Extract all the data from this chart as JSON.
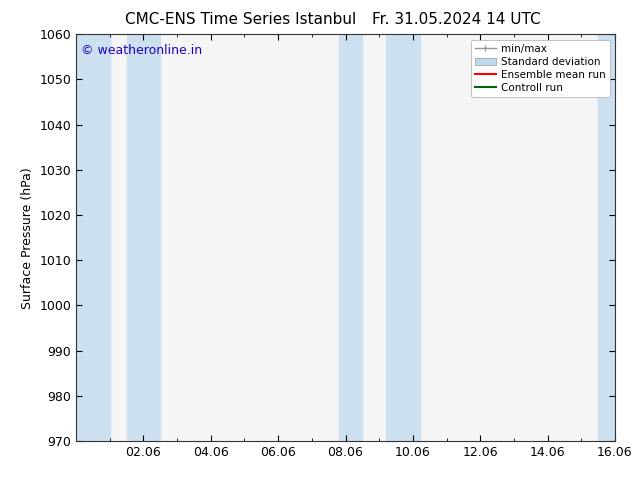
{
  "title_left": "CMC-ENS Time Series Istanbul",
  "title_right": "Fr. 31.05.2024 14 UTC",
  "ylabel": "Surface Pressure (hPa)",
  "ylim": [
    970,
    1060
  ],
  "yticks": [
    970,
    980,
    990,
    1000,
    1010,
    1020,
    1030,
    1040,
    1050,
    1060
  ],
  "xlim": [
    0,
    16
  ],
  "xticks": [
    2,
    4,
    6,
    8,
    10,
    12,
    14,
    16
  ],
  "xticklabels": [
    "02.06",
    "04.06",
    "06.06",
    "08.06",
    "10.06",
    "12.06",
    "14.06",
    "16.06"
  ],
  "watermark": "© weatheronline.in",
  "watermark_color": "#1a00cc",
  "bg_color": "#ffffff",
  "plot_bg_color": "#f5f5f5",
  "shaded_bands": [
    {
      "x_start": 0.0,
      "x_end": 1.0
    },
    {
      "x_start": 1.5,
      "x_end": 2.5
    },
    {
      "x_start": 7.8,
      "x_end": 8.5
    },
    {
      "x_start": 9.2,
      "x_end": 10.2
    },
    {
      "x_start": 15.5,
      "x_end": 16.0
    }
  ],
  "shaded_color": "#cce0f0",
  "legend_labels": [
    "min/max",
    "Standard deviation",
    "Ensemble mean run",
    "Controll run"
  ],
  "legend_colors": [
    "#999999",
    "#c0d8ee",
    "#ff0000",
    "#006600"
  ],
  "font_size": 9,
  "title_font_size": 11,
  "tick_label_size": 9
}
